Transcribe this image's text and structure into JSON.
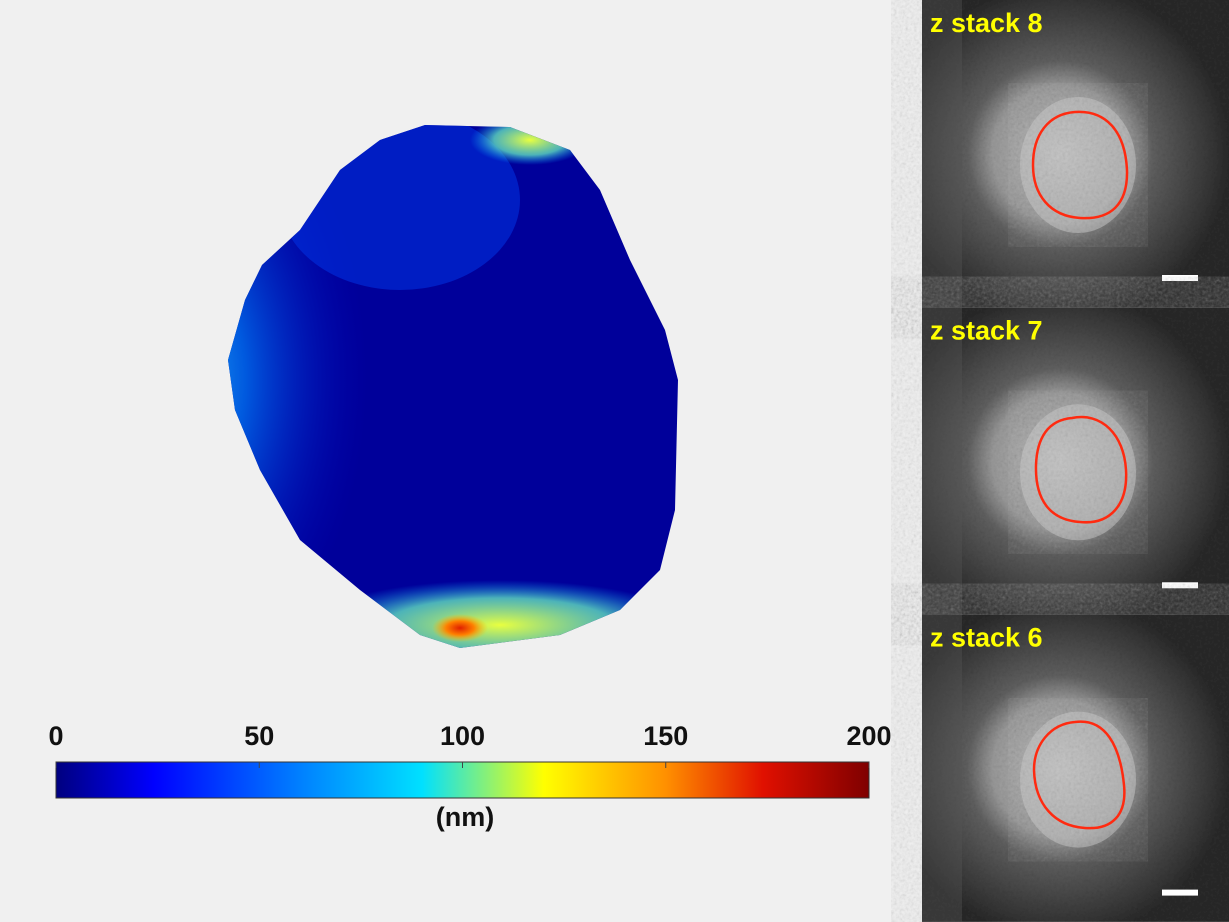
{
  "colorbar": {
    "lim": [
      0,
      200
    ],
    "ticks": [
      0,
      50,
      100,
      150,
      200
    ],
    "label": "(nm)"
  },
  "panels": [
    {
      "label": "z stack 8"
    },
    {
      "label": "z stack 7"
    },
    {
      "label": "z stack 6"
    }
  ]
}
